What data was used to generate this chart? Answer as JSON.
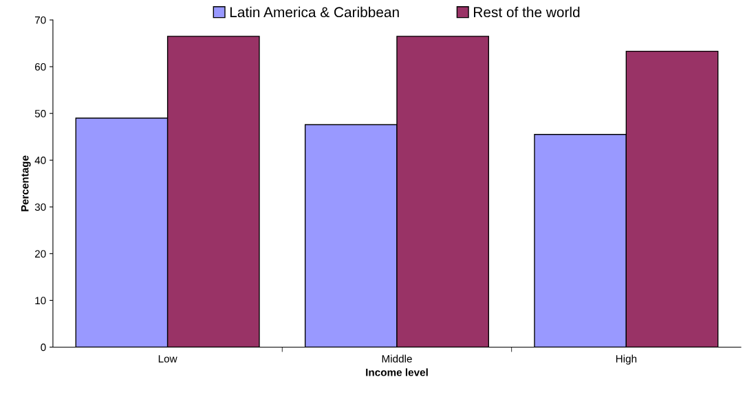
{
  "chart_data": {
    "type": "bar",
    "xlabel": "Income level",
    "ylabel": "Percentage",
    "categories": [
      "Low",
      "Middle",
      "High"
    ],
    "series": [
      {
        "name": "Latin America & Caribbean",
        "color": "#9999ff",
        "values": [
          49.0,
          47.6,
          45.5
        ]
      },
      {
        "name": "Rest of the world",
        "color": "#993366",
        "values": [
          66.5,
          66.5,
          63.3
        ]
      }
    ],
    "ylim": [
      0,
      70
    ],
    "yticks": [
      0,
      10,
      20,
      30,
      40,
      50,
      60,
      70
    ],
    "grid": false,
    "legend": "top"
  }
}
